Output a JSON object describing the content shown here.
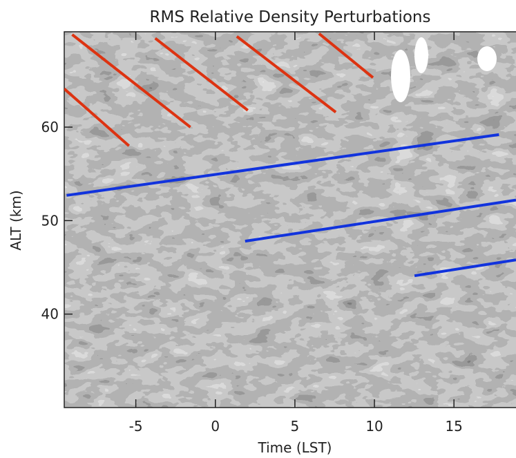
{
  "chart_data": {
    "type": "contour",
    "title": "RMS Relative Density Perturbations",
    "x_label": "Time (LST)",
    "y_label": "ALT (km)",
    "xlim": [
      -9.5,
      18.9
    ],
    "ylim": [
      30,
      70.2
    ],
    "xticks": [
      -5,
      0,
      5,
      10,
      15
    ],
    "yticks": [
      40,
      50,
      60
    ],
    "series": [
      {
        "color": "#dd3311",
        "x": [
          -9.0,
          -1.57
        ],
        "values": [
          69.9,
          60
        ]
      },
      {
        "color": "#dd3311",
        "x": [
          -9.5,
          -5.43
        ],
        "values": [
          64.1,
          58.0
        ]
      },
      {
        "color": "#dd3311",
        "x": [
          -3.78,
          2.04
        ],
        "values": [
          69.5,
          61.8
        ]
      },
      {
        "color": "#dd3311",
        "x": [
          1.35,
          7.57
        ],
        "values": [
          69.7,
          61.6
        ]
      },
      {
        "color": "#dd3311",
        "x": [
          6.52,
          9.91
        ],
        "values": [
          70.0,
          65.3
        ]
      },
      {
        "color": "#1133dd",
        "x": [
          -9.35,
          17.83
        ],
        "values": [
          52.7,
          59.2
        ]
      },
      {
        "color": "#1133dd",
        "x": [
          1.87,
          18.9
        ],
        "values": [
          47.8,
          52.2
        ]
      },
      {
        "color": "#1133dd",
        "x": [
          12.52,
          18.9
        ],
        "values": [
          44.1,
          45.8
        ]
      }
    ]
  }
}
